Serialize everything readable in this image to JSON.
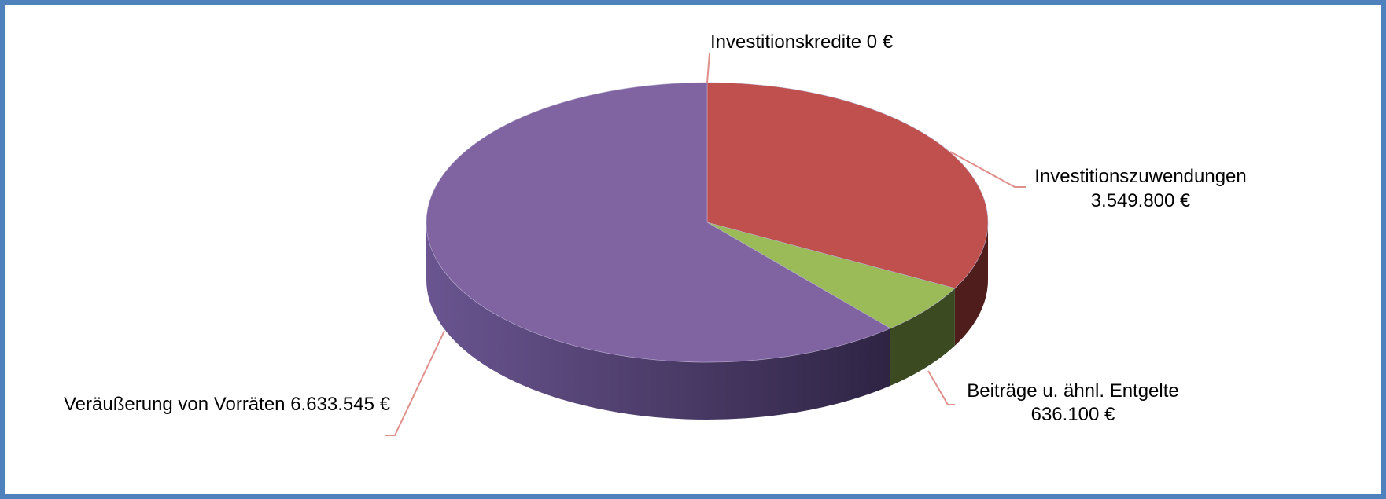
{
  "chart_data": {
    "type": "pie3d",
    "categories": [
      "Investitionskredite",
      "Investitionszuwendungen",
      "Beiträge u. ähnl. Entgelte",
      "Veräußerung von Vorräten"
    ],
    "values": [
      0,
      3549800,
      636100,
      6633545
    ],
    "value_labels": [
      "0 €",
      "3.549.800 €",
      "636.100 €",
      "6.633.545 €"
    ],
    "colors": [
      "#4f81bd",
      "#c0504d",
      "#9bbb59",
      "#8064a2"
    ]
  }
}
